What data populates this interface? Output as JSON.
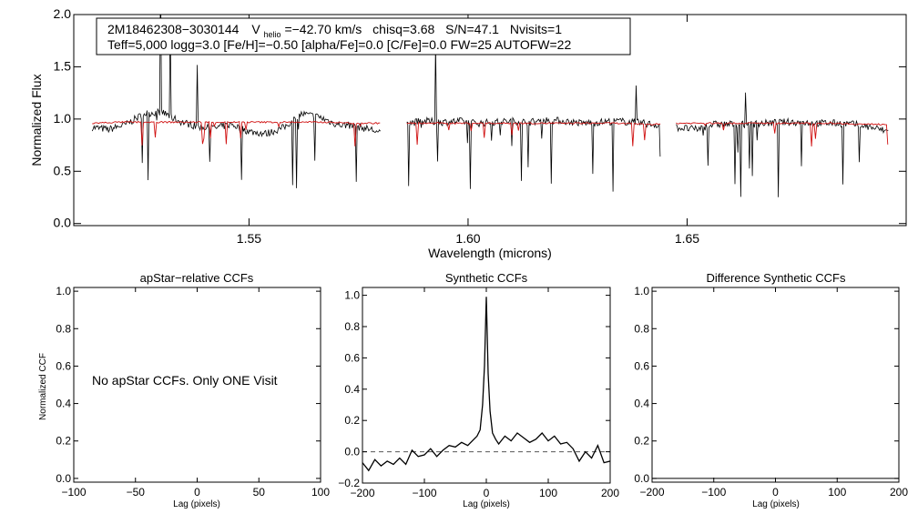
{
  "colors": {
    "observed": "#000000",
    "model": "#d01010",
    "zero_line": "#555555"
  },
  "chart_data": [
    {
      "id": "spectrum",
      "type": "line",
      "title": "",
      "xlabel": "Wavelength (microns)",
      "ylabel": "Normalized Flux",
      "xlim": [
        1.51,
        1.7
      ],
      "ylim": [
        -0.02,
        2.0
      ],
      "x_ticks": [
        1.55,
        1.6,
        1.65
      ],
      "x_tick_labels": [
        "1.55",
        "1.60",
        "1.65"
      ],
      "y_ticks": [
        0.0,
        0.5,
        1.0,
        1.5,
        2.0
      ],
      "y_tick_labels": [
        "0.0",
        "0.5",
        "1.0",
        "1.5",
        "2.0"
      ],
      "info_box": {
        "star_id": "2M18462308−3030144",
        "vhelio_label": "V",
        "vhelio_sub": "helio",
        "vhelio_value": "=−42.70 km/s",
        "chisq": "chisq=3.68",
        "snr": "S/N=47.1",
        "nvisits": "Nvisits=1",
        "line2": "Teff=5,000 logg=3.0 [Fe/H]=−0.50 [alpha/Fe]=0.0 [C/Fe]=0.0 FW=25 AUTOFW=22"
      },
      "chips": [
        [
          1.5142,
          1.58
        ],
        [
          1.586,
          1.644
        ],
        [
          1.6475,
          1.696
        ]
      ],
      "series": [
        {
          "name": "observed",
          "x": [
            1.5142,
            1.518,
            1.522,
            1.526,
            1.53,
            1.534,
            1.538,
            1.542,
            1.546,
            1.55,
            1.554,
            1.558,
            1.562,
            1.566,
            1.57,
            1.574,
            1.578,
            1.58,
            1.586,
            1.59,
            1.594,
            1.598,
            1.602,
            1.606,
            1.61,
            1.614,
            1.618,
            1.622,
            1.626,
            1.63,
            1.634,
            1.638,
            1.642,
            1.644,
            1.6475,
            1.652,
            1.656,
            1.66,
            1.664,
            1.668,
            1.672,
            1.676,
            1.68,
            1.684,
            1.688,
            1.692,
            1.696
          ],
          "y": [
            0.92,
            0.9,
            0.95,
            1.05,
            1.07,
            0.98,
            0.93,
            0.91,
            0.95,
            0.88,
            0.86,
            0.92,
            1.05,
            1.02,
            0.95,
            0.93,
            0.9,
            0.86,
            0.96,
            0.98,
            0.97,
            0.98,
            0.96,
            0.97,
            0.98,
            0.97,
            0.99,
            0.98,
            0.96,
            0.97,
            0.98,
            0.97,
            0.95,
            0.94,
            0.92,
            0.9,
            0.95,
            0.95,
            0.95,
            0.96,
            0.97,
            0.97,
            0.96,
            0.96,
            0.95,
            0.92,
            0.88
          ]
        },
        {
          "name": "model",
          "x": [
            1.5142,
            1.52,
            1.526,
            1.532,
            1.538,
            1.544,
            1.55,
            1.556,
            1.562,
            1.568,
            1.574,
            1.58,
            1.586,
            1.592,
            1.598,
            1.604,
            1.61,
            1.616,
            1.622,
            1.628,
            1.634,
            1.64,
            1.644,
            1.6475,
            1.654,
            1.66,
            1.666,
            1.672,
            1.678,
            1.684,
            1.69,
            1.696
          ],
          "y": [
            0.96,
            0.97,
            0.97,
            0.97,
            0.97,
            0.97,
            0.97,
            0.97,
            0.97,
            0.97,
            0.96,
            0.96,
            0.96,
            0.96,
            0.96,
            0.96,
            0.96,
            0.96,
            0.96,
            0.96,
            0.96,
            0.95,
            0.95,
            0.96,
            0.96,
            0.96,
            0.96,
            0.96,
            0.96,
            0.96,
            0.95,
            0.95
          ]
        }
      ]
    },
    {
      "id": "apstar-ccf",
      "type": "line",
      "title": "apStar−relative CCFs",
      "xlabel": "Lag (pixels)",
      "ylabel": "Normalized CCF",
      "xlim": [
        -100,
        100
      ],
      "ylim": [
        -0.02,
        1.02
      ],
      "x_ticks": [
        -100,
        -50,
        0,
        50,
        100
      ],
      "x_tick_labels": [
        "−100",
        "−50",
        "0",
        "50",
        "100"
      ],
      "y_ticks": [
        0.0,
        0.2,
        0.4,
        0.6,
        0.8,
        1.0
      ],
      "y_tick_labels": [
        "0.0",
        "0.2",
        "0.4",
        "0.6",
        "0.8",
        "1.0"
      ],
      "annotation": "No apStar CCFs.  Only ONE Visit",
      "series": []
    },
    {
      "id": "synthetic-ccf",
      "type": "line",
      "title": "Synthetic CCFs",
      "xlabel": "Lag (pixels)",
      "ylabel": "",
      "xlim": [
        -200,
        200
      ],
      "ylim": [
        -0.2,
        1.05
      ],
      "x_ticks": [
        -200,
        -100,
        0,
        100,
        200
      ],
      "x_tick_labels": [
        "−200",
        "−100",
        "0",
        "100",
        "200"
      ],
      "y_ticks": [
        -0.2,
        0.0,
        0.2,
        0.4,
        0.6,
        0.8,
        1.0
      ],
      "y_tick_labels": [
        "−0.2",
        "0.0",
        "0.2",
        "0.4",
        "0.6",
        "0.8",
        "1.0"
      ],
      "zero_line": 0.0,
      "series": [
        {
          "name": "ccf",
          "x": [
            -200,
            -190,
            -180,
            -170,
            -160,
            -150,
            -140,
            -130,
            -120,
            -110,
            -100,
            -90,
            -80,
            -70,
            -60,
            -50,
            -40,
            -30,
            -20,
            -15,
            -10,
            -6,
            -3,
            0,
            3,
            6,
            10,
            15,
            20,
            30,
            40,
            50,
            60,
            70,
            80,
            90,
            100,
            110,
            120,
            130,
            140,
            150,
            160,
            170,
            180,
            190,
            200
          ],
          "y": [
            -0.07,
            -0.12,
            -0.05,
            -0.09,
            -0.06,
            -0.08,
            -0.04,
            -0.08,
            0.01,
            -0.03,
            -0.02,
            0.02,
            -0.03,
            0.01,
            0.04,
            0.03,
            0.06,
            0.04,
            0.08,
            0.1,
            0.14,
            0.3,
            0.55,
            0.99,
            0.5,
            0.26,
            0.12,
            0.08,
            0.05,
            0.1,
            0.07,
            0.12,
            0.09,
            0.06,
            0.08,
            0.12,
            0.07,
            0.1,
            0.05,
            0.06,
            0.02,
            -0.06,
            0.0,
            -0.04,
            0.04,
            -0.07,
            -0.06
          ]
        }
      ]
    },
    {
      "id": "difference-ccf",
      "type": "line",
      "title": "Difference Synthetic CCFs",
      "xlabel": "Lag (pixels)",
      "ylabel": "",
      "xlim": [
        -200,
        200
      ],
      "ylim": [
        -0.02,
        1.02
      ],
      "x_ticks": [
        -200,
        -100,
        0,
        100,
        200
      ],
      "x_tick_labels": [
        "−200",
        "−100",
        "0",
        "100",
        "200"
      ],
      "y_ticks": [
        0.0,
        0.2,
        0.4,
        0.6,
        0.8,
        1.0
      ],
      "y_tick_labels": [
        "0.0",
        "0.2",
        "0.4",
        "0.6",
        "0.8",
        "1.0"
      ],
      "series": []
    }
  ]
}
